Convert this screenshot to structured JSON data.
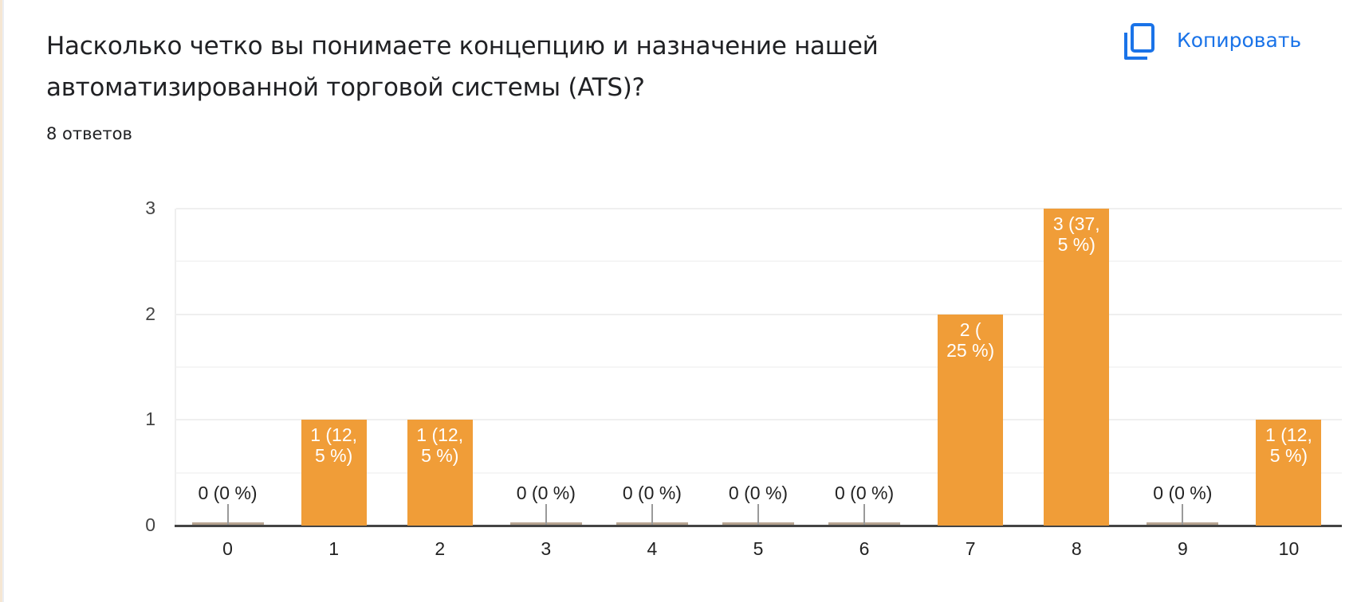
{
  "question": {
    "title": "Насколько четко вы понимаете концепцию и назначение нашей автоматизированной торговой системы (ATS)?",
    "responses": "8 ответов"
  },
  "copy_button": {
    "label": "Копировать",
    "icon": "copy-icon",
    "color": "#1a73e8"
  },
  "colors": {
    "bar": "#f09d38",
    "gridline": "#efefef",
    "axis": "#444444",
    "text": "#202124"
  },
  "chart_data": {
    "type": "bar",
    "title": "Насколько четко вы понимаете концепцию и назначение нашей автоматизированной торговой системы (ATS)?",
    "subtitle": "8 ответов",
    "categories": [
      "0",
      "1",
      "2",
      "3",
      "4",
      "5",
      "6",
      "7",
      "8",
      "9",
      "10"
    ],
    "values": [
      0,
      1,
      1,
      0,
      0,
      0,
      0,
      2,
      3,
      0,
      1
    ],
    "data_labels": [
      "0 (0 %)",
      "1 (12,\n5 %)",
      "1 (12,\n5 %)",
      "0 (0 %)",
      "0 (0 %)",
      "0 (0 %)",
      "0 (0 %)",
      "2 (\n25 %)",
      "3 (37,\n5 %)",
      "0 (0 %)",
      "1 (12,\n5 %)"
    ],
    "percentages": [
      0,
      12.5,
      12.5,
      0,
      0,
      0,
      0,
      25,
      37.5,
      0,
      12.5
    ],
    "xlabel": "",
    "ylabel": "",
    "yticks": [
      "0",
      "1",
      "2",
      "3"
    ],
    "ylim": [
      0,
      3
    ],
    "grid": true,
    "legend": null
  }
}
